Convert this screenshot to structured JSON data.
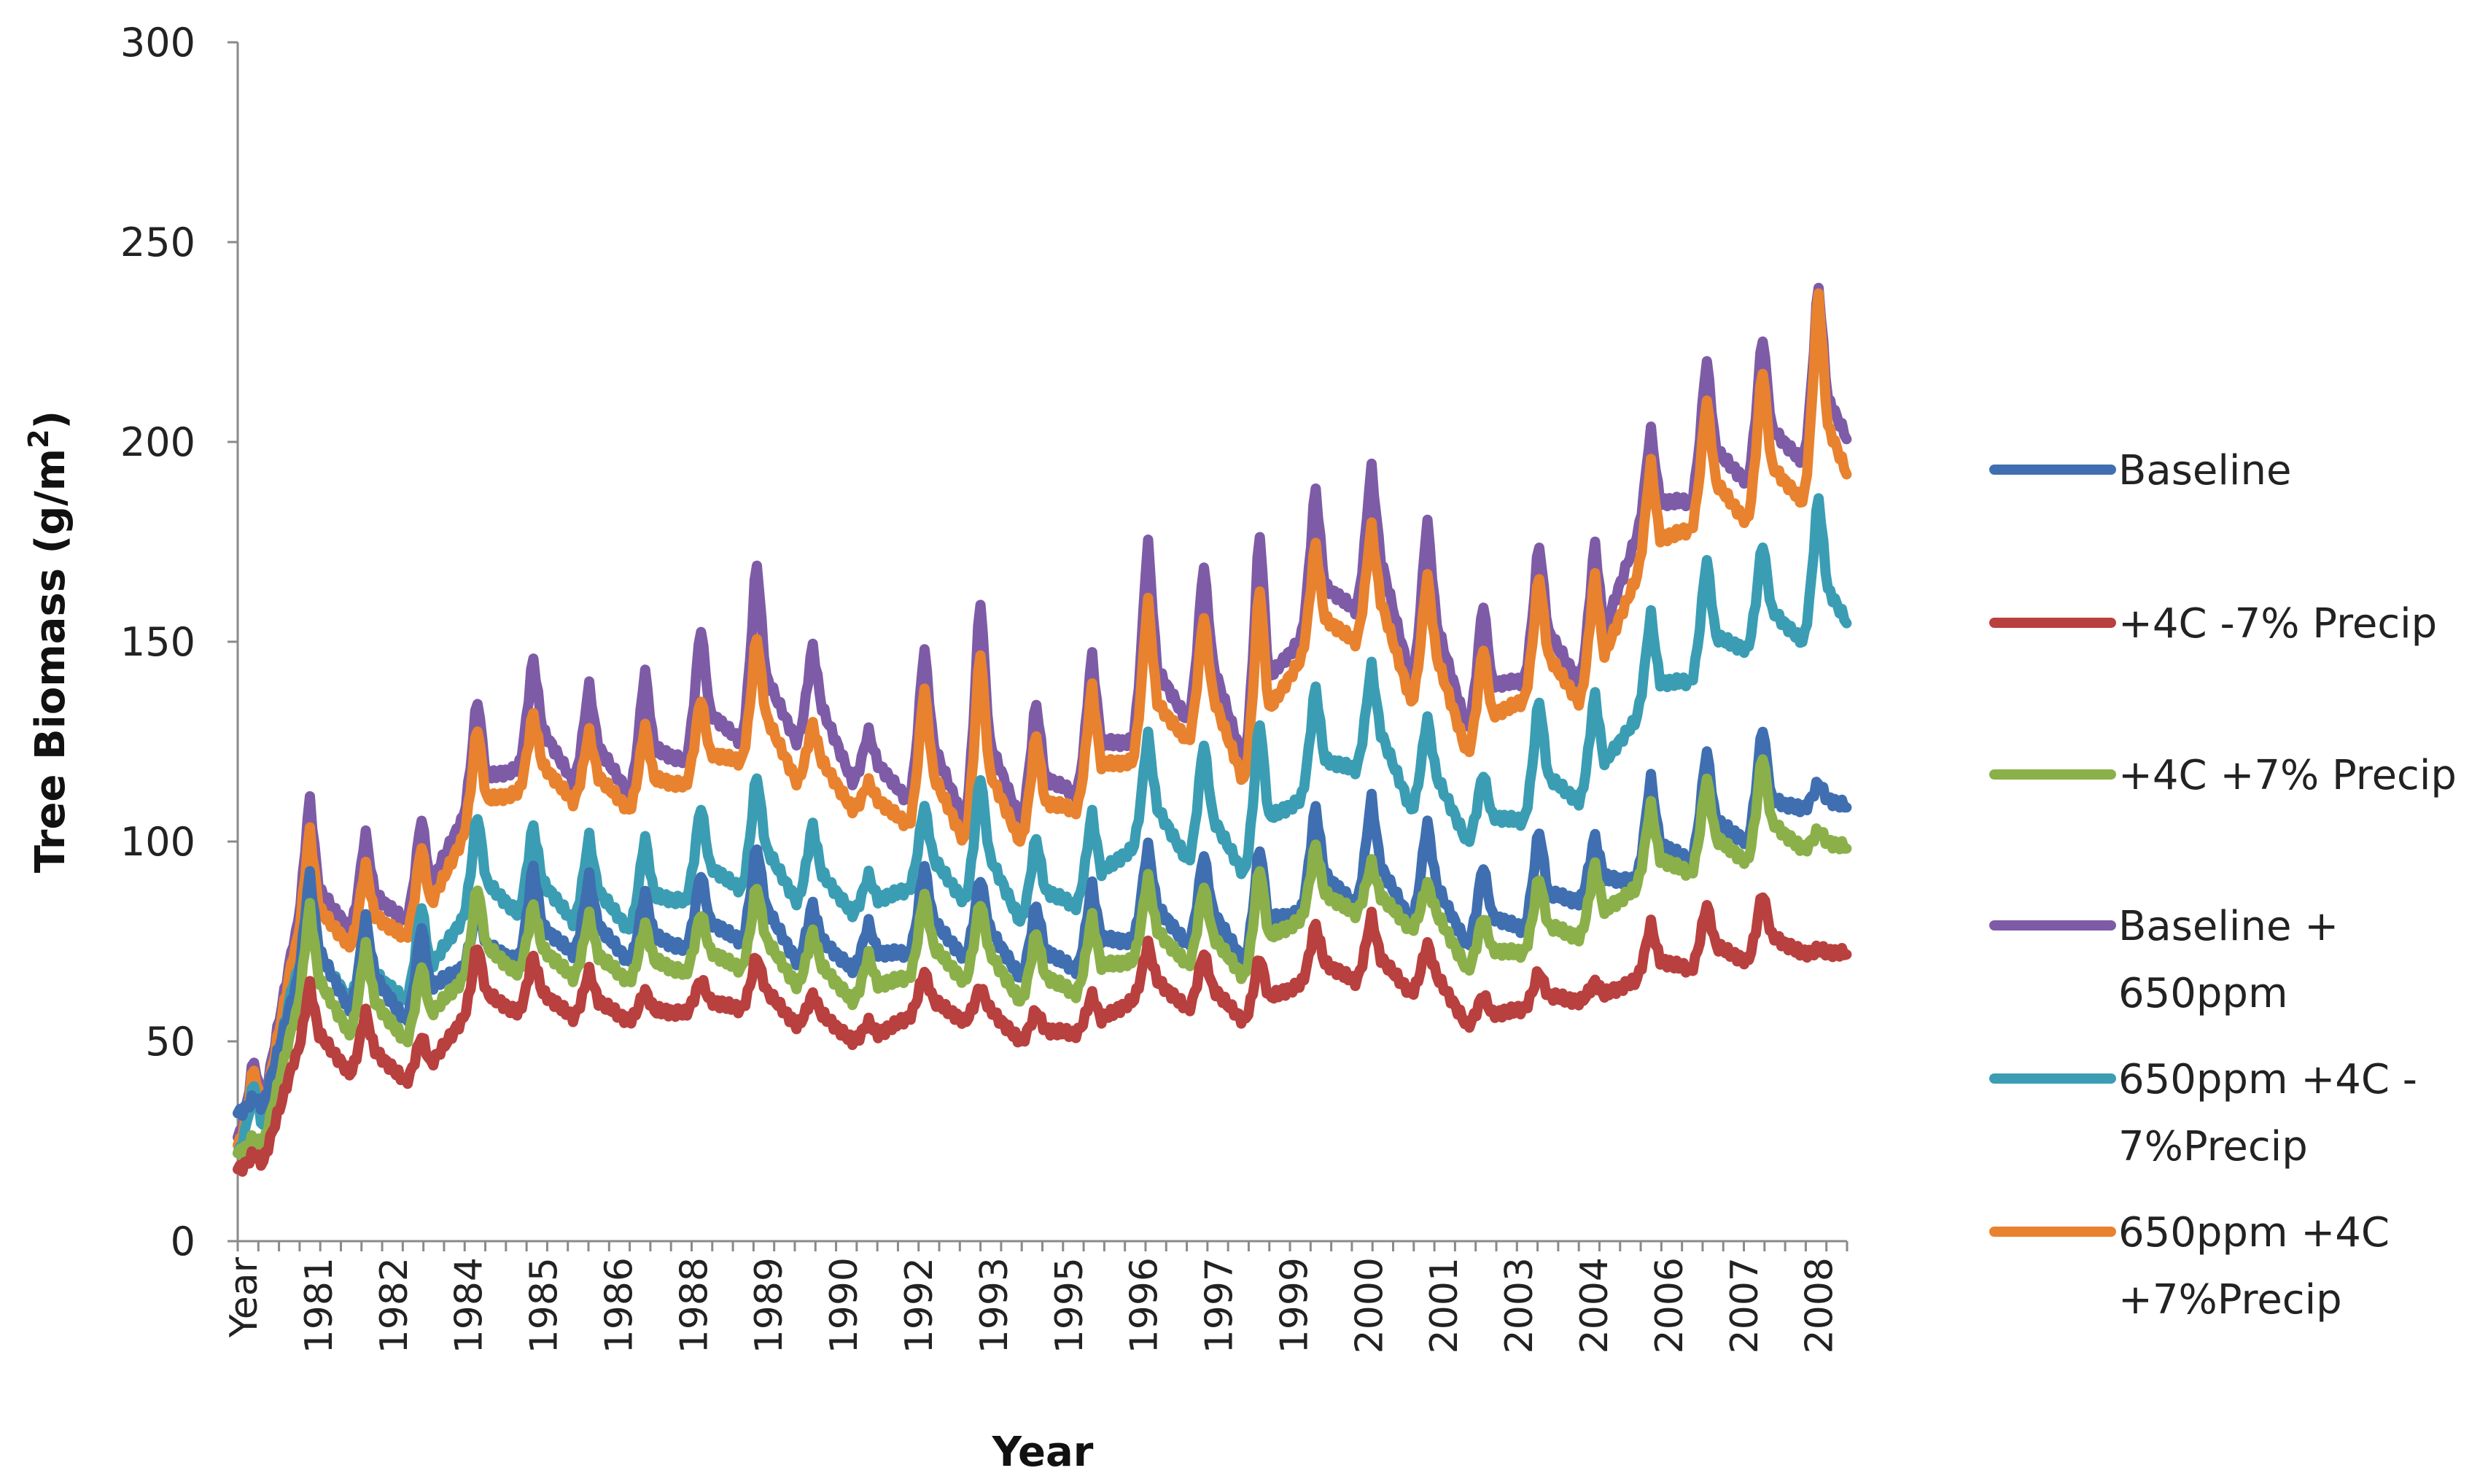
{
  "chart_data": {
    "type": "line",
    "title": "",
    "xlabel": "Year",
    "ylabel": "Tree Biomass (g/m²)",
    "ylabel_main": "Tree Biomass (g/m",
    "ylabel_sup": "2",
    "ylabel_close": ")",
    "ylim": [
      0,
      300
    ],
    "yticks": [
      0,
      50,
      100,
      150,
      200,
      250,
      300
    ],
    "x_tick_labels": [
      "Year",
      "1981",
      "1982",
      "1982",
      "1984",
      "1984",
      "1985",
      "1986",
      "1986",
      "1988",
      "1988",
      "1989",
      "1990",
      "1990",
      "1992",
      "1992",
      "1993",
      "1993",
      "1995",
      "1995",
      "1996",
      "1997",
      "1997",
      "1999",
      "1999",
      "2000",
      "2000",
      "2001",
      "2001",
      "2003",
      "2003",
      "2004",
      "2004",
      "2006",
      "2006",
      "2007",
      "2007",
      "2008",
      "2008"
    ],
    "x_tick_labels_visible": [
      "Year",
      "1981",
      "1982",
      "1984",
      "1985",
      "1986",
      "1988",
      "1989",
      "1990",
      "1992",
      "1993",
      "1995",
      "1996",
      "1997",
      "1999",
      "2000",
      "2001",
      "2003",
      "2004",
      "2006",
      "2007",
      "2008"
    ],
    "x_start_year": 1980,
    "x_end_year": 2008.8,
    "samples_per_year": 24,
    "legend_position": "right",
    "series": [
      {
        "name": "Baseline",
        "legend_lines": [
          "Baseline"
        ],
        "color": "#3F6FB0",
        "annual_base": [
          32,
          62,
          58,
          55,
          68,
          70,
          72,
          70,
          73,
          75,
          70,
          68,
          72,
          71,
          66,
          68,
          75,
          74,
          70,
          82,
          84,
          80,
          74,
          78,
          85,
          90,
          95,
          100,
          108
        ],
        "annual_peak": [
          36,
          93,
          82,
          80,
          85,
          95,
          92,
          88,
          93,
          100,
          85,
          80,
          95,
          92,
          85,
          90,
          100,
          98,
          100,
          110,
          112,
          106,
          95,
          104,
          102,
          117,
          124,
          130,
          115
        ]
      },
      {
        "name": "+4C -7% Precip",
        "legend_lines": [
          "+4C -7% Precip"
        ],
        "color": "#B8403E",
        "annual_base": [
          18,
          45,
          42,
          40,
          55,
          57,
          56,
          55,
          57,
          58,
          54,
          50,
          56,
          55,
          50,
          52,
          60,
          58,
          55,
          64,
          65,
          62,
          54,
          58,
          60,
          65,
          68,
          70,
          72
        ],
        "annual_peak": [
          22,
          65,
          58,
          52,
          75,
          72,
          68,
          63,
          66,
          72,
          62,
          55,
          68,
          64,
          58,
          62,
          75,
          73,
          72,
          80,
          82,
          75,
          62,
          68,
          65,
          80,
          85,
          88,
          73
        ]
      },
      {
        "name": "+4C +7% Precip",
        "legend_lines": [
          "+4C +7% Precip"
        ],
        "color": "#8BB04A",
        "annual_base": [
          22,
          55,
          52,
          50,
          65,
          67,
          66,
          65,
          67,
          68,
          64,
          60,
          66,
          65,
          60,
          62,
          70,
          69,
          66,
          80,
          82,
          78,
          68,
          72,
          76,
          88,
          92,
          95,
          98
        ],
        "annual_peak": [
          26,
          85,
          75,
          70,
          90,
          85,
          82,
          80,
          83,
          90,
          78,
          72,
          88,
          86,
          78,
          82,
          92,
          90,
          95,
          100,
          95,
          90,
          82,
          92,
          95,
          110,
          117,
          123,
          103
        ]
      },
      {
        "name": "Baseline + 650ppm",
        "legend_lines": [
          "Baseline +",
          "650ppm"
        ],
        "color": "#7E5BA6",
        "annual_base": [
          26,
          75,
          78,
          80,
          105,
          118,
          115,
          112,
          120,
          125,
          125,
          115,
          110,
          105,
          105,
          112,
          125,
          130,
          120,
          150,
          158,
          140,
          128,
          140,
          140,
          175,
          185,
          190,
          195
        ],
        "annual_peak": [
          46,
          112,
          103,
          107,
          137,
          147,
          140,
          144,
          155,
          172,
          150,
          128,
          150,
          163,
          136,
          148,
          177,
          171,
          180,
          190,
          195,
          182,
          161,
          176,
          176,
          204,
          222,
          228,
          241
        ]
      },
      {
        "name": "650ppm  +4C -7%Precip",
        "legend_lines": [
          "650ppm  +4C -",
          "7%Precip"
        ],
        "color": "#3B9DB3",
        "annual_base": [
          22,
          65,
          60,
          60,
          80,
          82,
          80,
          78,
          85,
          88,
          85,
          82,
          88,
          85,
          80,
          84,
          98,
          95,
          92,
          110,
          118,
          108,
          100,
          105,
          110,
          130,
          140,
          148,
          150
        ],
        "annual_peak": [
          40,
          85,
          80,
          85,
          108,
          105,
          102,
          102,
          110,
          118,
          105,
          92,
          110,
          118,
          102,
          108,
          128,
          126,
          132,
          140,
          145,
          132,
          118,
          137,
          138,
          158,
          172,
          176,
          188
        ]
      },
      {
        "name": "650ppm +4C +7%Precip",
        "legend_lines": [
          "650ppm +4C",
          "+7%Precip"
        ],
        "color": "#E8822E",
        "annual_base": [
          24,
          72,
          74,
          76,
          100,
          112,
          110,
          108,
          114,
          120,
          115,
          108,
          104,
          100,
          100,
          108,
          120,
          125,
          115,
          145,
          150,
          135,
          122,
          135,
          135,
          165,
          178,
          180,
          185
        ],
        "annual_peak": [
          44,
          104,
          95,
          100,
          130,
          133,
          128,
          130,
          137,
          153,
          130,
          115,
          140,
          150,
          128,
          140,
          162,
          158,
          166,
          176,
          180,
          168,
          150,
          168,
          168,
          196,
          212,
          220,
          240
        ]
      }
    ]
  }
}
